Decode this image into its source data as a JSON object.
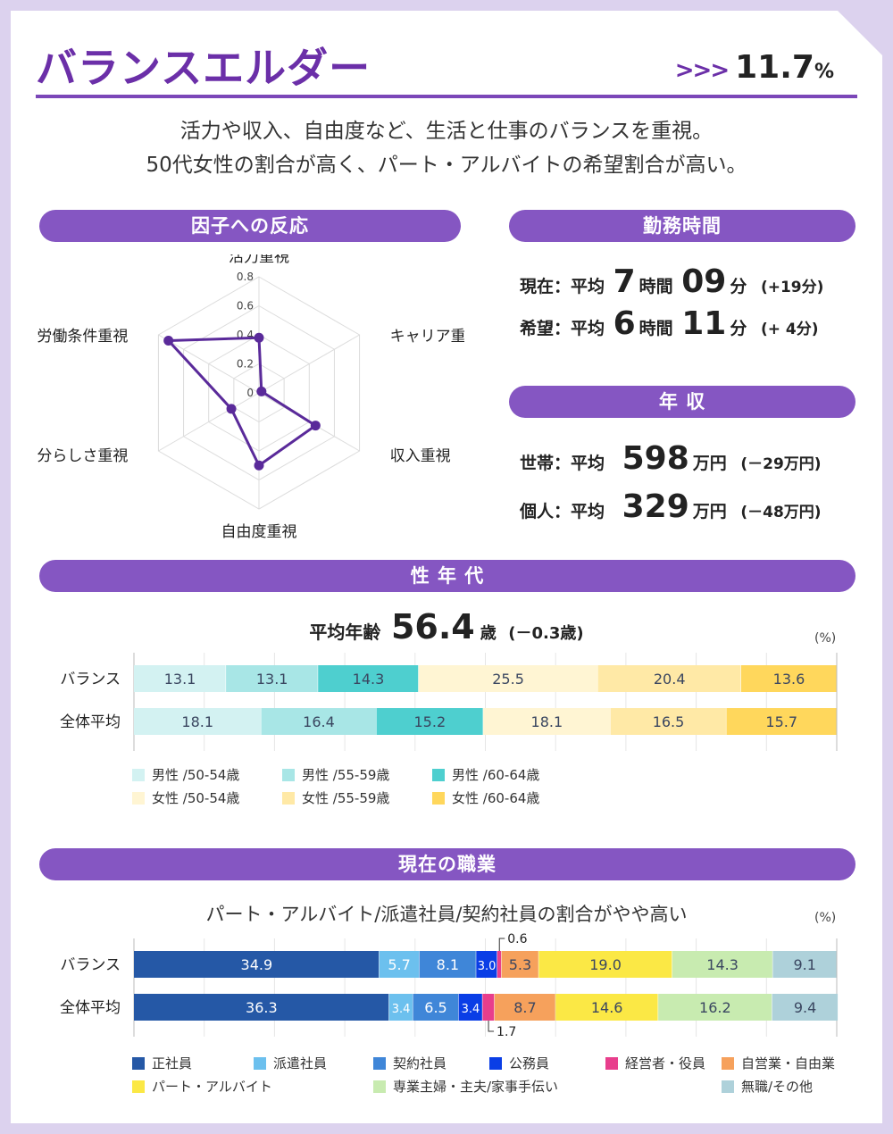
{
  "header": {
    "title": "バランスエルダー",
    "arrows": ">>>",
    "share_value": "11.7",
    "share_unit": "%"
  },
  "description": {
    "line1": "活力や収入、自由度など、生活と仕事のバランスを重視。",
    "line2": "50代女性の割合が高く、パート・アルバイトの希望割合が高い。"
  },
  "sections": {
    "factor": "因子への反応",
    "work_hours": "勤務時間",
    "income": "年 収",
    "gender_age": "性 年 代",
    "occupation": "現在の職業"
  },
  "work_hours": {
    "current": {
      "label": "現在：平均",
      "hours": "7",
      "hours_unit": "時間",
      "minutes": "09",
      "minutes_unit": "分",
      "diff": "(+19分)"
    },
    "desired": {
      "label": "希望：平均",
      "hours": "6",
      "hours_unit": "時間",
      "minutes": "11",
      "minutes_unit": "分",
      "diff": "(+ 4分)"
    }
  },
  "income": {
    "household": {
      "label": "世帯：平均",
      "value": "598",
      "unit": "万円",
      "diff": "(－29万円)"
    },
    "personal": {
      "label": "個人：平均",
      "value": "329",
      "unit": "万円",
      "diff": "(－48万円)"
    }
  },
  "avg_age": {
    "label": "平均年齢",
    "value": "56.4",
    "unit": "歳",
    "diff": "(－0.3歳)"
  },
  "occupation_subtitle": "パート・アルバイト/派遣社員/契約社員の割合がやや高い",
  "pct_label": "(%)",
  "colors": {
    "purple": "#6b2fa8",
    "pill": "#8556c2",
    "radar_line": "#5a2a9a"
  },
  "chart_data": [
    {
      "type": "radar",
      "title": "因子への反応",
      "axes": [
        "活力重視",
        "キャリア重視",
        "収入重視",
        "自由度重視",
        "自分らしさ重視",
        "労働条件重視"
      ],
      "values": [
        0.38,
        0.02,
        0.45,
        0.5,
        0.22,
        0.72
      ],
      "ticks": [
        "0",
        "0.2",
        "0.4",
        "0.6",
        "0.8"
      ],
      "range": [
        0,
        0.8
      ]
    },
    {
      "type": "bar",
      "orientation": "horizontal-stacked",
      "title": "性年代",
      "categories": [
        "バランス",
        "全体平均"
      ],
      "series": [
        {
          "name": "男性 /50-54歳",
          "color": "#d3f2f2",
          "values": [
            13.1,
            18.1
          ]
        },
        {
          "name": "男性 /55-59歳",
          "color": "#a8e6e6",
          "values": [
            13.1,
            16.4
          ]
        },
        {
          "name": "男性 /60-64歳",
          "color": "#4ecfcf",
          "values": [
            14.3,
            15.2
          ]
        },
        {
          "name": "女性 /50-54歳",
          "color": "#fff5d3",
          "values": [
            25.5,
            18.1
          ]
        },
        {
          "name": "女性 /55-59歳",
          "color": "#ffe9a6",
          "values": [
            20.4,
            16.5
          ]
        },
        {
          "name": "女性 /60-64歳",
          "color": "#ffd75c",
          "values": [
            13.6,
            15.7
          ]
        }
      ],
      "unit": "(%)",
      "xlim": [
        0,
        100
      ]
    },
    {
      "type": "bar",
      "orientation": "horizontal-stacked",
      "title": "現在の職業",
      "categories": [
        "バランス",
        "全体平均"
      ],
      "series": [
        {
          "name": "正社員",
          "color": "#2558a6",
          "values": [
            34.9,
            36.3
          ]
        },
        {
          "name": "派遣社員",
          "color": "#6cc0ee",
          "values": [
            5.7,
            3.4
          ]
        },
        {
          "name": "契約社員",
          "color": "#3f86d8",
          "values": [
            8.1,
            6.5
          ]
        },
        {
          "name": "公務員",
          "color": "#0a3ee6",
          "values": [
            3.0,
            3.4
          ]
        },
        {
          "name": "経営者・役員",
          "color": "#e83e8c",
          "values": [
            0.6,
            1.7
          ]
        },
        {
          "name": "自営業・自由業",
          "color": "#f6a15c",
          "values": [
            5.3,
            8.7
          ]
        },
        {
          "name": "パート・アルバイト",
          "color": "#fbe845",
          "values": [
            19.0,
            14.6
          ]
        },
        {
          "name": "専業主婦・主夫/家事手伝い",
          "color": "#c8ebb0",
          "values": [
            14.3,
            16.2
          ]
        },
        {
          "name": "無職/その他",
          "color": "#aed1da",
          "values": [
            9.1,
            9.4
          ]
        }
      ],
      "unit": "(%)",
      "xlim": [
        0,
        100
      ]
    }
  ]
}
